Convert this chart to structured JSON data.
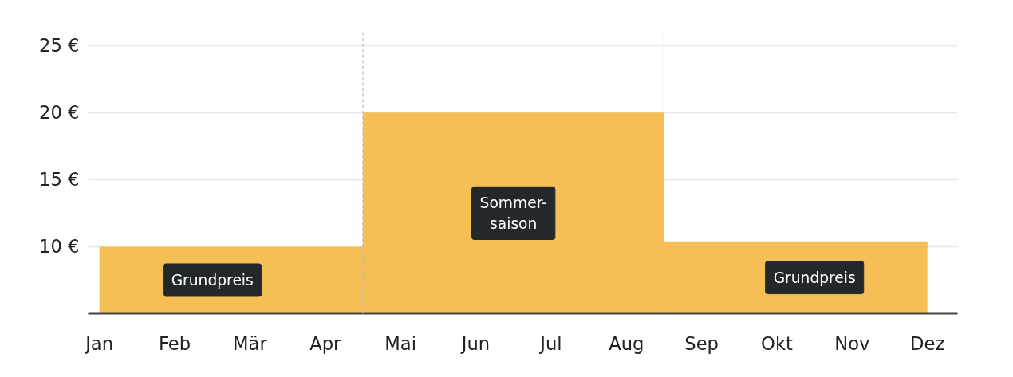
{
  "chart_data": {
    "type": "area",
    "categories": [
      "Jan",
      "Feb",
      "Mär",
      "Apr",
      "Mai",
      "Jun",
      "Jul",
      "Aug",
      "Sep",
      "Okt",
      "Nov",
      "Dez"
    ],
    "series": [
      {
        "color": "#f6bf55",
        "values": [
          10,
          10,
          10,
          10,
          20,
          20,
          20,
          20,
          10.4,
          10.4,
          10.4,
          10.4
        ]
      }
    ],
    "ylim": [
      5,
      26
    ],
    "yticks": [
      {
        "value": 10,
        "label": "10 €"
      },
      {
        "value": 15,
        "label": "15 €"
      },
      {
        "value": 20,
        "label": "20 €"
      },
      {
        "value": 25,
        "label": "25 €"
      }
    ],
    "grid": "y",
    "annotations": [
      "Grundpreis",
      "Sommer-\nsaison",
      "Grundpreis"
    ]
  }
}
